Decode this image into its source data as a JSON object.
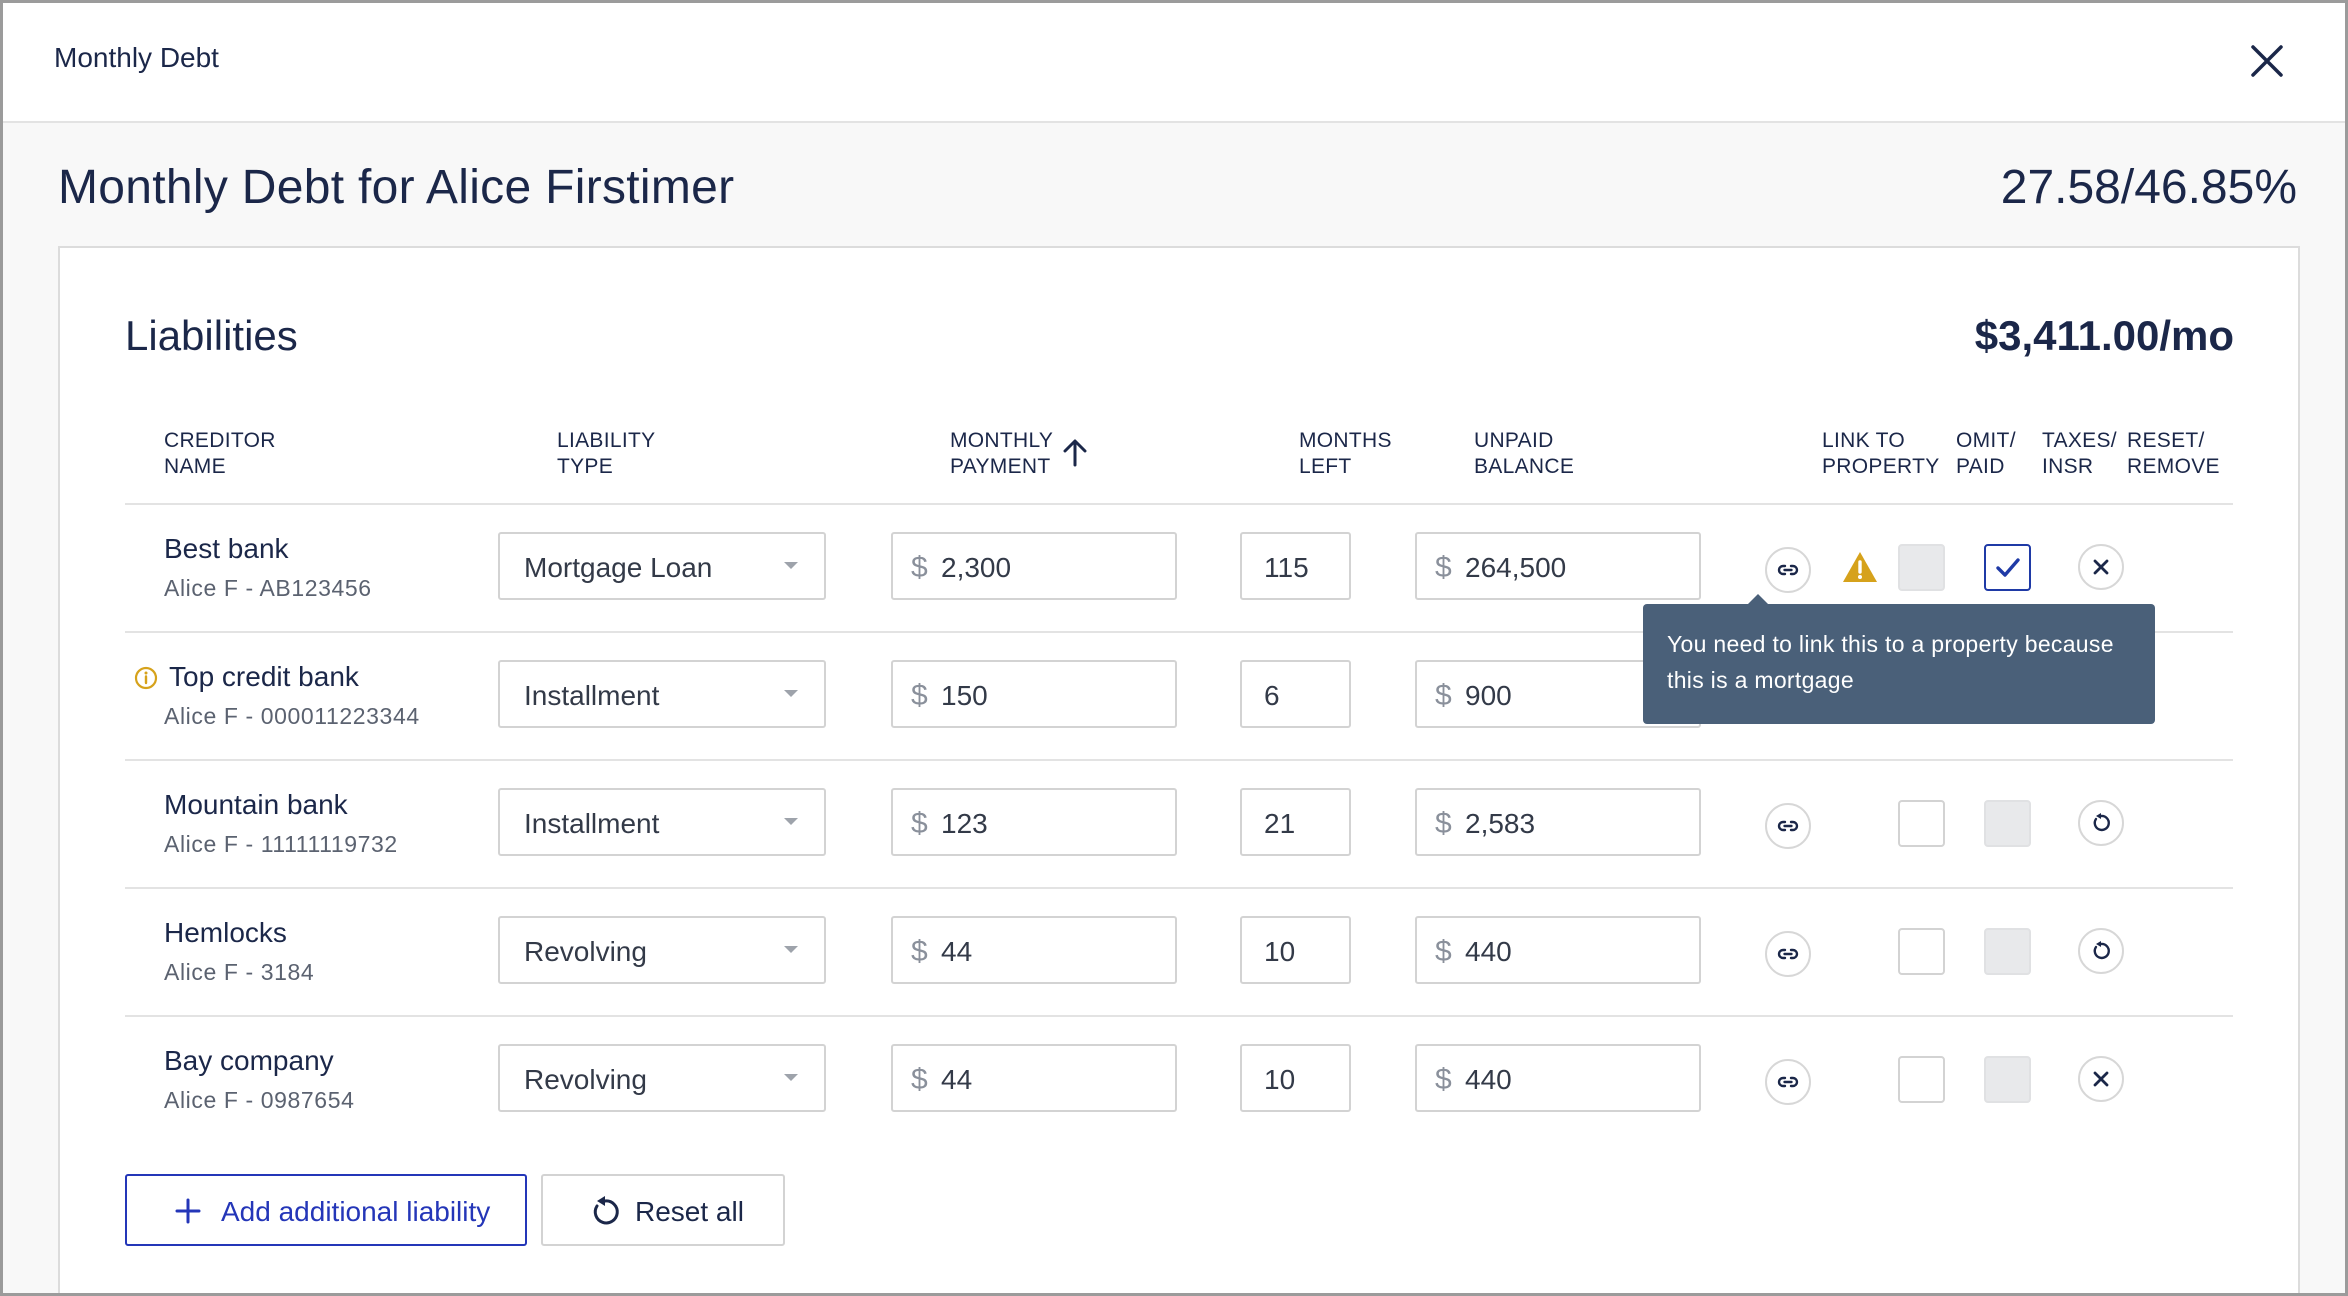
{
  "dialog": {
    "title": "Monthly Debt",
    "close_icon": "close-icon"
  },
  "header": {
    "title": "Monthly Debt for Alice Firstimer",
    "ratio": "27.58/46.85%"
  },
  "liabilities": {
    "title": "Liabilities",
    "total": "$3,411.00/mo",
    "columns": {
      "creditor": "CREDITOR\nNAME",
      "type": "LIABILITY\nTYPE",
      "payment": "MONTHLY\nPAYMENT",
      "months": "MONTHS\nLEFT",
      "balance": "UNPAID\nBALANCE",
      "link": "LINK TO\nPROPERTY",
      "omit": "OMIT/\nPAID",
      "taxes": "TAXES/\nINSR",
      "reset": "RESET/\nREMOVE"
    },
    "currency_symbol": "$",
    "rows": [
      {
        "name": "Best bank",
        "account": "Alice F - AB123456",
        "type": "Mortgage Loan",
        "payment": "2,300",
        "months": "115",
        "balance": "264,500",
        "omit_disabled": true,
        "taxes_checked": true,
        "action": "remove",
        "warning": true,
        "info": false
      },
      {
        "name": "Top credit bank",
        "account": "Alice F - 000011223344",
        "type": "Installment",
        "payment": "150",
        "months": "6",
        "balance": "900",
        "action": "remove",
        "warning": false,
        "info": true
      },
      {
        "name": "Mountain bank",
        "account": "Alice F - 11111119732",
        "type": "Installment",
        "payment": "123",
        "months": "21",
        "balance": "2,583",
        "omit_disabled": false,
        "taxes_disabled": true,
        "action": "reset",
        "warning": false,
        "info": false
      },
      {
        "name": "Hemlocks",
        "account": "Alice F - 3184",
        "type": "Revolving",
        "payment": "44",
        "months": "10",
        "balance": "440",
        "omit_disabled": false,
        "taxes_disabled": true,
        "action": "reset",
        "warning": false,
        "info": false
      },
      {
        "name": "Bay company",
        "account": "Alice F - 0987654",
        "type": "Revolving",
        "payment": "44",
        "months": "10",
        "balance": "440",
        "omit_disabled": false,
        "taxes_disabled": true,
        "action": "remove",
        "warning": false,
        "info": false
      }
    ],
    "tooltip": "You need to link this to a property because this is a mortgage",
    "add_button": "Add additional liability",
    "reset_button": "Reset all"
  },
  "colors": {
    "primary": "#2436b8",
    "text": "#1b2749",
    "warning": "#d6a21b",
    "tooltip_bg": "#4a6079"
  }
}
